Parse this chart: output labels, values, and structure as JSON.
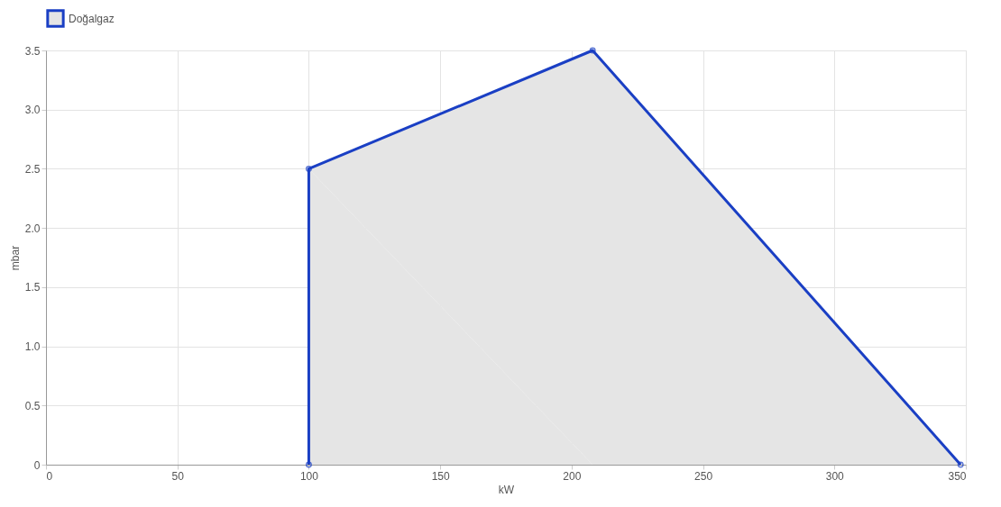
{
  "chart_data": {
    "type": "area",
    "xlabel": "kW",
    "ylabel": "mbar",
    "series": [
      {
        "name": "Doğalgaz",
        "color": "#1a3fc4",
        "x": [
          100,
          100,
          208,
          348
        ],
        "values": [
          0,
          2.5,
          3.5,
          0
        ]
      }
    ],
    "xlim": [
      0,
      350
    ],
    "xticks": [
      0,
      50,
      100,
      150,
      200,
      250,
      300,
      350
    ],
    "ylim": [
      0,
      3.5
    ],
    "yticks": [
      0,
      0.5,
      {
        "value": 1,
        "label": "1.0"
      },
      1.5,
      {
        "value": 2,
        "label": "2.0"
      },
      2.5,
      {
        "value": 3,
        "label": "3.0"
      },
      3.5
    ],
    "grid": true,
    "legend": "top",
    "marker": "circle",
    "line_style": "solid"
  }
}
